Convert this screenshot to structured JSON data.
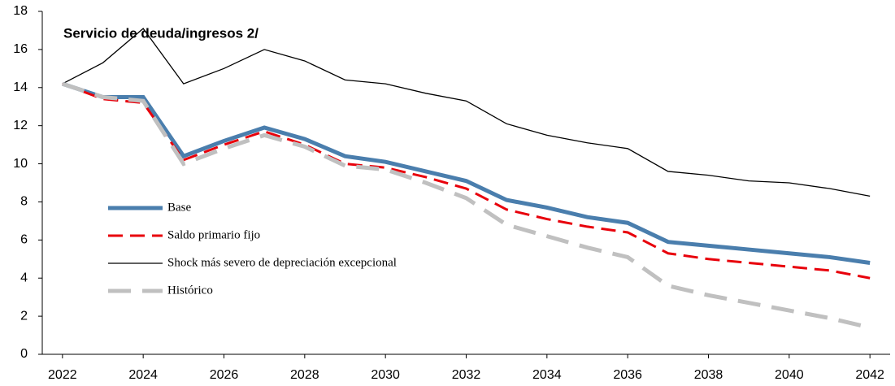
{
  "chart_data": {
    "type": "line",
    "title": "Servicio de deuda/ingresos 2/",
    "x": [
      2022,
      2023,
      2024,
      2025,
      2026,
      2027,
      2028,
      2029,
      2030,
      2031,
      2032,
      2033,
      2034,
      2035,
      2036,
      2037,
      2038,
      2039,
      2040,
      2041,
      2042
    ],
    "series": [
      {
        "name": "Base",
        "color": "#4a7ead",
        "width": 5,
        "dash": "none",
        "values": [
          14.2,
          13.5,
          13.5,
          10.4,
          11.2,
          11.9,
          11.3,
          10.4,
          10.1,
          9.6,
          9.1,
          8.1,
          7.7,
          7.2,
          6.9,
          5.9,
          5.7,
          5.5,
          5.3,
          5.1,
          4.8
        ]
      },
      {
        "name": "Saldo primario fijo",
        "color": "#e8000b",
        "width": 3,
        "dash": "18 9",
        "values": [
          14.2,
          13.4,
          13.2,
          10.2,
          11.0,
          11.7,
          11.0,
          10.0,
          9.8,
          9.3,
          8.7,
          7.6,
          7.1,
          6.7,
          6.4,
          5.3,
          5.0,
          4.8,
          4.6,
          4.4,
          4.0
        ]
      },
      {
        "name": "Shock más severo de depreciación excepcional",
        "color": "#000000",
        "width": 1.3,
        "dash": "none",
        "values": [
          14.2,
          15.3,
          17.1,
          14.2,
          15.0,
          16.0,
          15.4,
          14.4,
          14.2,
          13.7,
          13.3,
          12.1,
          11.5,
          11.1,
          10.8,
          9.6,
          9.4,
          9.1,
          9.0,
          8.7,
          8.3
        ]
      },
      {
        "name": "Histórico",
        "color": "#c0c0c0",
        "width": 5,
        "dash": "28 14",
        "values": [
          14.2,
          13.5,
          13.3,
          10.0,
          10.8,
          11.5,
          10.9,
          9.9,
          9.7,
          9.0,
          8.2,
          6.8,
          6.2,
          5.6,
          5.1,
          3.6,
          3.1,
          2.7,
          2.3,
          1.9,
          1.4
        ]
      }
    ],
    "xlim": [
      2021.5,
      2042.5
    ],
    "xticks": [
      2022,
      2024,
      2026,
      2028,
      2030,
      2032,
      2034,
      2036,
      2038,
      2040,
      2042
    ],
    "ylim": [
      0,
      18
    ],
    "yticks": [
      0,
      2,
      4,
      6,
      8,
      10,
      12,
      14,
      16,
      18
    ],
    "grid": false
  }
}
